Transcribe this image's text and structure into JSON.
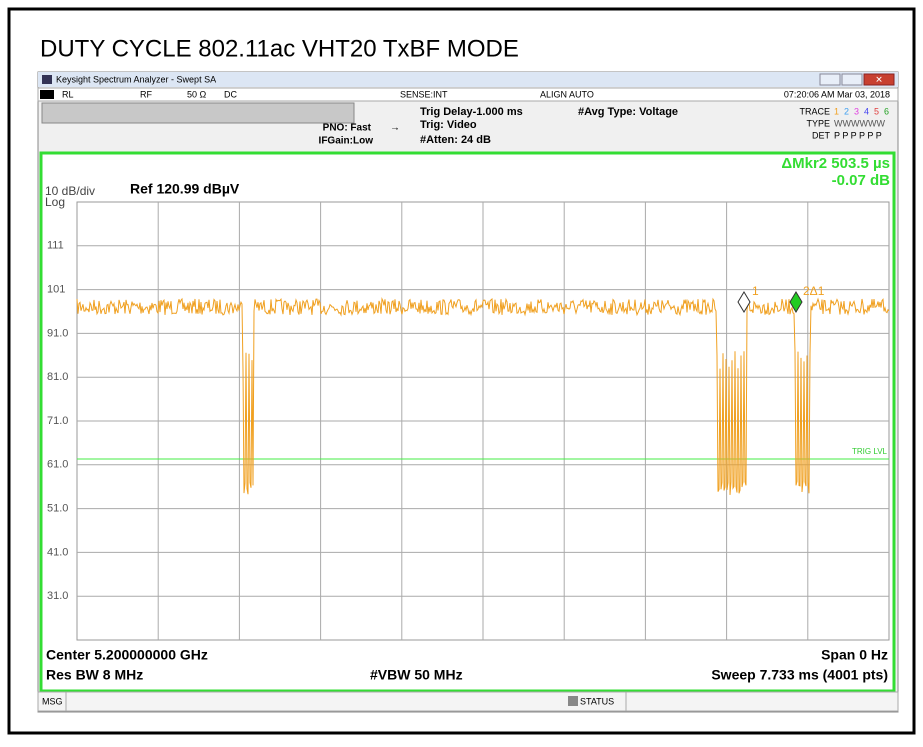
{
  "title": "DUTY CYCLE 802.11ac VHT20 TxBF MODE",
  "window": {
    "title": "Keysight Spectrum Analyzer - Swept SA"
  },
  "status_row": {
    "rl": "RL",
    "rf": "RF",
    "impedance": "50 Ω",
    "coupling": "DC",
    "sense": "SENSE:INT",
    "align": "ALIGN AUTO",
    "datetime": "07:20:06 AM Mar 03, 2018"
  },
  "settings": {
    "pno": "PNO: Fast",
    "ifgain": "IFGain:Low",
    "trig_delay": "Trig Delay-1.000 ms",
    "trig": "Trig: Video",
    "atten": "#Atten: 24 dB",
    "avg": "#Avg Type: Voltage",
    "trace_label": "TRACE",
    "trace_nums": [
      "1",
      "2",
      "3",
      "4",
      "5",
      "6"
    ],
    "type_label": "TYPE",
    "type_value": "WWWWWW",
    "det_label": "DET",
    "det_value": "P P P P P P"
  },
  "graph": {
    "scale": "10 dB/div",
    "log": "Log",
    "ref": "Ref 120.99 dBµV",
    "y_labels": [
      "111",
      "101",
      "91.0",
      "81.0",
      "71.0",
      "61.0",
      "51.0",
      "41.0",
      "31.0"
    ],
    "marker_delta": "ΔMkr2 503.5 µs",
    "marker_value": "-0.07 dB",
    "marker1": "1",
    "marker2": "2Δ1",
    "trig_label": "TRIG LVL"
  },
  "footer": {
    "center": "Center 5.200000000 GHz",
    "span": "Span 0 Hz",
    "rbw": "Res BW 8 MHz",
    "vbw": "#VBW 50 MHz",
    "sweep": "Sweep  7.733 ms (4001 pts)"
  },
  "msg_bar": {
    "msg": "MSG",
    "status": "STATUS"
  }
}
